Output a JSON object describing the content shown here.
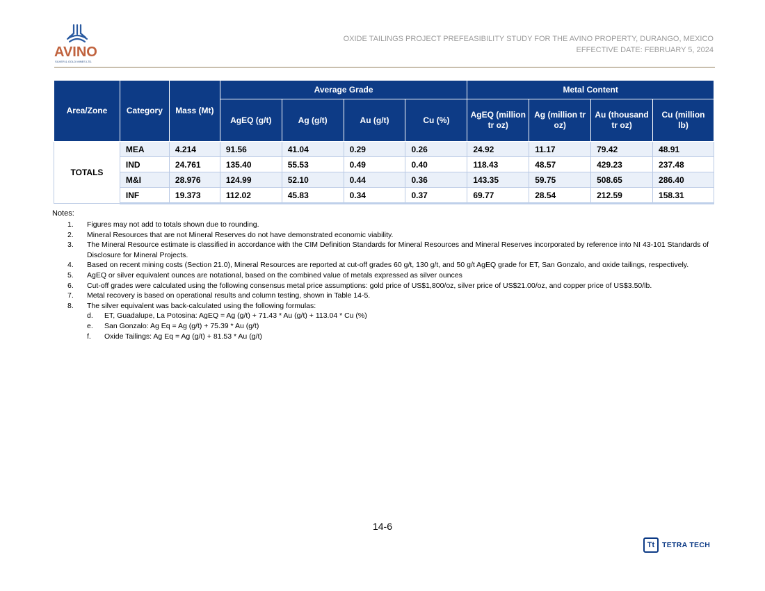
{
  "header": {
    "logo_word": "AVINO",
    "logo_sub": "SILVER & GOLD MINES LTD.",
    "line1": "OXIDE TAILINGS PROJECT PREFEASIBILITY STUDY FOR THE AVINO PROPERTY, DURANGO, MEXICO",
    "line2": "EFFECTIVE DATE: FEBRUARY 5, 2024"
  },
  "table": {
    "h_area": "Area/Zone",
    "h_category": "Category",
    "h_mass": "Mass (Mt)",
    "h_avg_grade": "Average Grade",
    "h_metal_content": "Metal Content",
    "h_ageq": "AgEQ (g/t)",
    "h_ag": "Ag (g/t)",
    "h_au": "Au (g/t)",
    "h_cu": "Cu (%)",
    "h_ageq_mc": "AgEQ (million tr oz)",
    "h_ag_mc": "Ag (million tr oz)",
    "h_au_mc": "Au (thousand tr oz)",
    "h_cu_mc": "Cu (million lb)",
    "area": "TOTALS",
    "rows": [
      {
        "c": "MEA",
        "mass": "4.214",
        "ageq": "91.56",
        "ag": "41.04",
        "au": "0.29",
        "cu": "0.26",
        "ageq_mc": "24.92",
        "ag_mc": "11.17",
        "au_mc": "79.42",
        "cu_mc": "48.91"
      },
      {
        "c": "IND",
        "mass": "24.761",
        "ageq": "135.40",
        "ag": "55.53",
        "au": "0.49",
        "cu": "0.40",
        "ageq_mc": "118.43",
        "ag_mc": "48.57",
        "au_mc": "429.23",
        "cu_mc": "237.48"
      },
      {
        "c": "M&I",
        "mass": "28.976",
        "ageq": "124.99",
        "ag": "52.10",
        "au": "0.44",
        "cu": "0.36",
        "ageq_mc": "143.35",
        "ag_mc": "59.75",
        "au_mc": "508.65",
        "cu_mc": "286.40"
      },
      {
        "c": "INF",
        "mass": "19.373",
        "ageq": "112.02",
        "ag": "45.83",
        "au": "0.34",
        "cu": "0.37",
        "ageq_mc": "69.77",
        "ag_mc": "28.54",
        "au_mc": "212.59",
        "cu_mc": "158.31"
      }
    ]
  },
  "notes": {
    "title": "Notes:",
    "items": [
      {
        "n": "1.",
        "t": "Figures may not add to totals shown due to rounding."
      },
      {
        "n": "2.",
        "t": "Mineral Resources that are not Mineral Reserves do not have demonstrated economic viability."
      },
      {
        "n": "3.",
        "t": "The Mineral Resource estimate is classified in accordance with the CIM Definition Standards for Mineral Resources and Mineral Reserves incorporated by reference into NI 43-101 Standards of Disclosure for Mineral Projects."
      },
      {
        "n": "4.",
        "t": "Based on recent mining costs (Section 21.0), Mineral Resources are reported at cut-off grades 60 g/t, 130 g/t, and 50 g/t AgEQ grade for ET, San Gonzalo, and oxide tailings, respectively."
      },
      {
        "n": "5.",
        "t": "AgEQ or silver equivalent ounces are notational, based on the combined value of metals expressed as silver ounces"
      },
      {
        "n": "6.",
        "t": "Cut-off grades were calculated using the following consensus metal price assumptions: gold price of US$1,800/oz, silver price of US$21.00/oz, and copper price of US$3.50/lb."
      },
      {
        "n": "7.",
        "t": "Metal recovery is based on operational results and column testing, shown in Table 14-5."
      },
      {
        "n": "8.",
        "t": "The silver equivalent was back-calculated using the following formulas:"
      }
    ],
    "sub": [
      {
        "n": "d.",
        "t": "ET, Guadalupe, La Potosina: AgEQ = Ag (g/t) + 71.43 * Au (g/t) + 113.04 * Cu (%)"
      },
      {
        "n": "e.",
        "t": "San Gonzalo: Ag Eq = Ag (g/t) + 75.39 * Au (g/t)"
      },
      {
        "n": "f.",
        "t": "Oxide Tailings: Ag Eq = Ag (g/t) + 81.53 * Au (g/t)"
      }
    ]
  },
  "footer": {
    "page": "14-6",
    "tt_mark": "Tt",
    "tt_text": "TETRA TECH"
  }
}
